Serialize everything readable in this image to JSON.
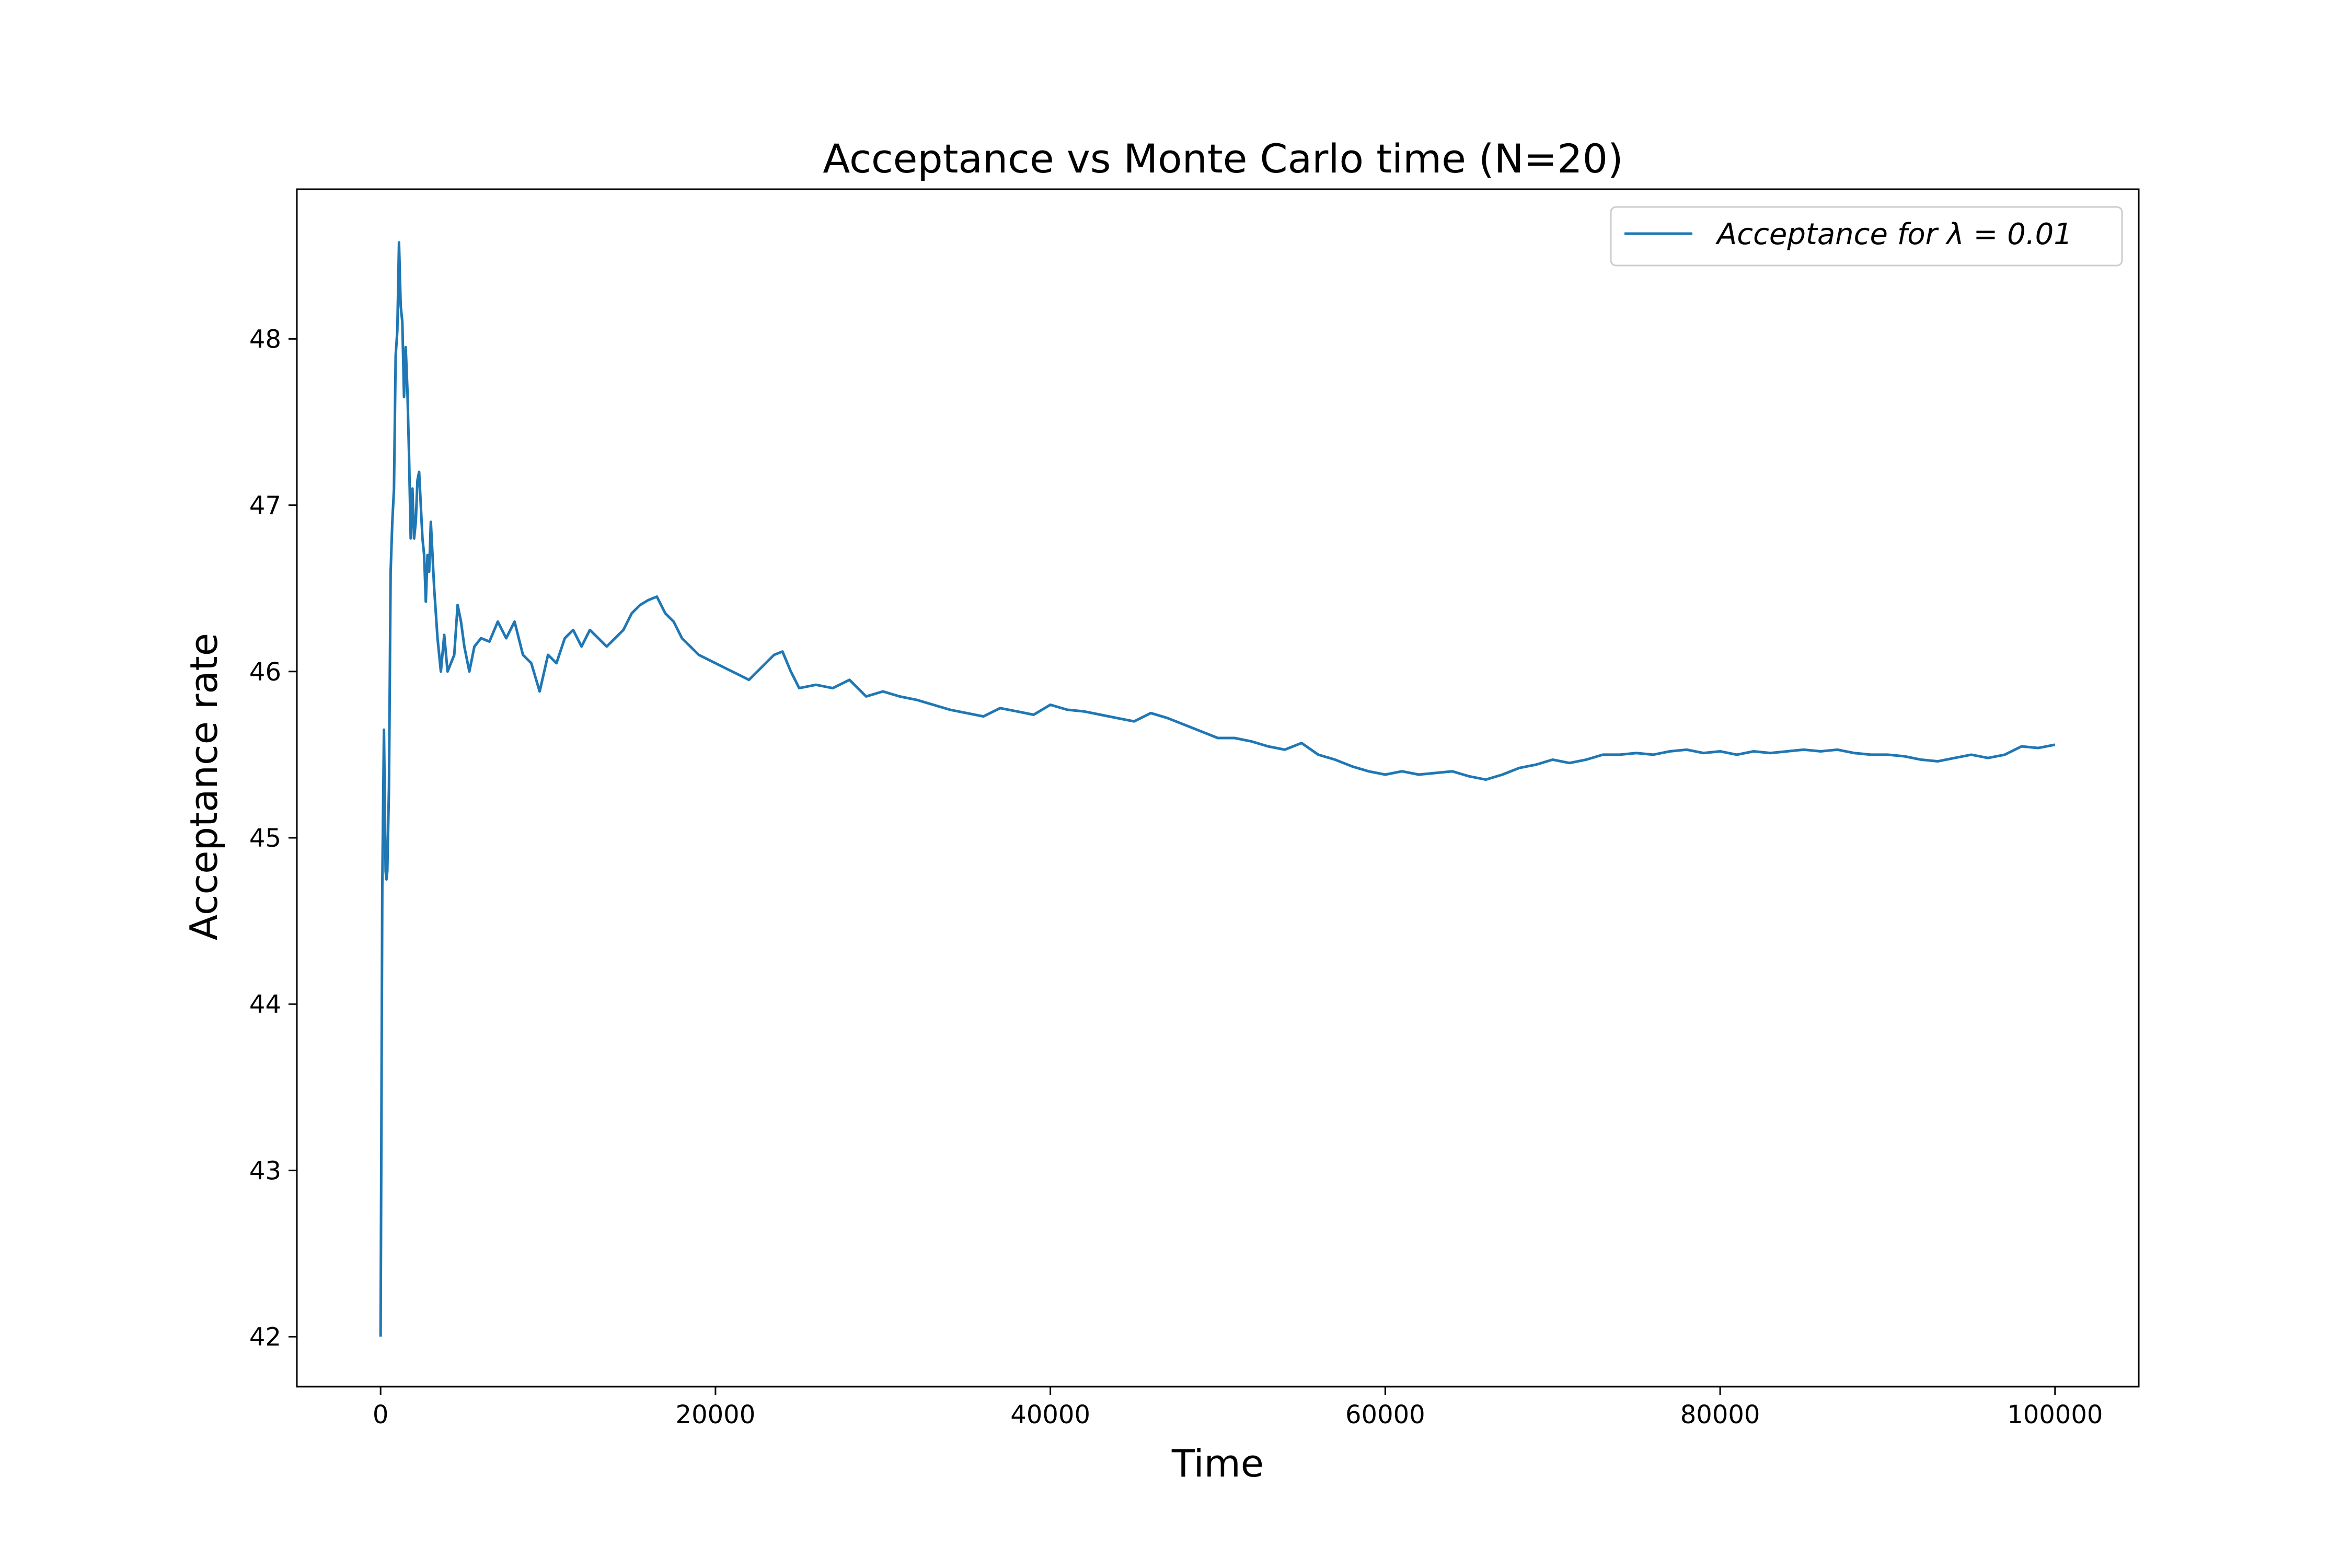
{
  "chart_data": {
    "type": "line",
    "title": "Acceptance vs Monte Carlo time (N=20)",
    "xlabel": "Time",
    "ylabel": "Acceptance rate",
    "xlim": [
      -5000,
      105000
    ],
    "ylim": [
      41.7,
      48.9
    ],
    "x_ticks": [
      0,
      20000,
      40000,
      60000,
      80000,
      100000
    ],
    "x_tick_labels": [
      "0",
      "20000",
      "40000",
      "60000",
      "80000",
      "100000"
    ],
    "y_ticks": [
      42,
      43,
      44,
      45,
      46,
      47,
      48
    ],
    "y_tick_labels": [
      "42",
      "43",
      "44",
      "45",
      "46",
      "47",
      "48"
    ],
    "grid": false,
    "legend_position": "top-right",
    "colors": {
      "series": "#1f77b4"
    },
    "series": [
      {
        "name": "Acceptance for λ = 0.01",
        "x": [
          0,
          100,
          200,
          300,
          350,
          400,
          500,
          600,
          700,
          800,
          900,
          1000,
          1100,
          1200,
          1300,
          1400,
          1500,
          1600,
          1700,
          1800,
          1900,
          2000,
          2100,
          2200,
          2300,
          2400,
          2500,
          2600,
          2700,
          2800,
          2900,
          3000,
          3200,
          3400,
          3600,
          3800,
          4000,
          4200,
          4400,
          4600,
          4800,
          5000,
          5300,
          5600,
          6000,
          6500,
          7000,
          7500,
          8000,
          8500,
          9000,
          9500,
          10000,
          10500,
          11000,
          11500,
          12000,
          12500,
          13000,
          13500,
          14000,
          14500,
          15000,
          15500,
          16000,
          16500,
          17000,
          17500,
          18000,
          18500,
          19000,
          20000,
          21000,
          22000,
          23000,
          23500,
          24000,
          24500,
          25000,
          26000,
          27000,
          28000,
          29000,
          30000,
          31000,
          32000,
          33000,
          34000,
          35000,
          36000,
          37000,
          38000,
          39000,
          40000,
          41000,
          42000,
          43000,
          44000,
          45000,
          46000,
          47000,
          48000,
          49000,
          50000,
          51000,
          52000,
          53000,
          54000,
          55000,
          56000,
          57000,
          58000,
          59000,
          60000,
          61000,
          62000,
          63000,
          64000,
          65000,
          66000,
          67000,
          68000,
          69000,
          70000,
          71000,
          72000,
          73000,
          74000,
          75000,
          76000,
          77000,
          78000,
          79000,
          80000,
          81000,
          82000,
          83000,
          84000,
          85000,
          86000,
          87000,
          88000,
          89000,
          90000,
          91000,
          92000,
          93000,
          94000,
          95000,
          96000,
          97000,
          98000,
          99000,
          100000
        ],
        "y": [
          42.0,
          44.7,
          45.65,
          44.8,
          44.75,
          44.8,
          45.3,
          46.6,
          46.9,
          47.1,
          47.9,
          48.05,
          48.58,
          48.2,
          48.1,
          47.65,
          47.95,
          47.7,
          47.3,
          46.8,
          47.1,
          46.8,
          46.9,
          47.15,
          47.2,
          47.0,
          46.8,
          46.7,
          46.42,
          46.7,
          46.6,
          46.9,
          46.5,
          46.2,
          46.0,
          46.22,
          46.0,
          46.05,
          46.1,
          46.4,
          46.3,
          46.15,
          46.0,
          46.15,
          46.2,
          46.18,
          46.3,
          46.2,
          46.3,
          46.1,
          46.05,
          45.88,
          46.1,
          46.05,
          46.2,
          46.25,
          46.15,
          46.25,
          46.2,
          46.15,
          46.2,
          46.25,
          46.35,
          46.4,
          46.43,
          46.45,
          46.35,
          46.3,
          46.2,
          46.15,
          46.1,
          46.05,
          46.0,
          45.95,
          46.05,
          46.1,
          46.12,
          46.0,
          45.9,
          45.92,
          45.9,
          45.95,
          45.85,
          45.88,
          45.85,
          45.83,
          45.8,
          45.77,
          45.75,
          45.73,
          45.78,
          45.76,
          45.74,
          45.8,
          45.77,
          45.76,
          45.74,
          45.72,
          45.7,
          45.75,
          45.72,
          45.68,
          45.64,
          45.6,
          45.6,
          45.58,
          45.55,
          45.53,
          45.57,
          45.5,
          45.47,
          45.43,
          45.4,
          45.38,
          45.4,
          45.38,
          45.39,
          45.4,
          45.37,
          45.35,
          45.38,
          45.42,
          45.44,
          45.47,
          45.45,
          45.47,
          45.5,
          45.5,
          45.51,
          45.5,
          45.52,
          45.53,
          45.51,
          45.52,
          45.5,
          45.52,
          45.51,
          45.52,
          45.53,
          45.52,
          45.53,
          45.51,
          45.5,
          45.5,
          45.49,
          45.47,
          45.46,
          45.48,
          45.5,
          45.48,
          45.5,
          45.55,
          45.54,
          45.56
        ]
      }
    ]
  }
}
